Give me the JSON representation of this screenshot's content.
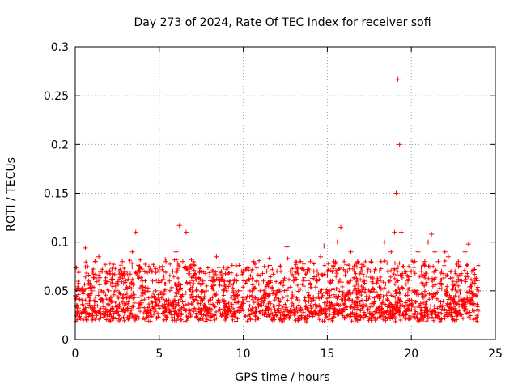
{
  "chart_data": {
    "type": "scatter",
    "title": "Day 273 of 2024, Rate Of TEC Index for receiver sofi",
    "xlabel": "GPS time / hours",
    "ylabel": "ROTI / TECUs",
    "xlim": [
      0,
      25
    ],
    "ylim": [
      0,
      0.3
    ],
    "x_ticks": [
      "0",
      "5",
      "10",
      "15",
      "20",
      "25"
    ],
    "y_ticks": [
      "0",
      "0.05",
      "0.1",
      "0.15",
      "0.2",
      "0.25",
      "0.3"
    ],
    "grid": true,
    "marker": "+",
    "color": "#ff0000",
    "series": [
      {
        "name": "ROTI",
        "x": [
          0.0,
          0.2,
          0.4,
          0.6,
          0.8,
          1.0,
          1.2,
          1.4,
          1.6,
          1.8,
          2.0,
          2.2,
          2.4,
          2.6,
          2.8,
          3.0,
          3.2,
          3.4,
          3.6,
          3.8,
          4.0,
          4.2,
          4.4,
          4.6,
          4.8,
          5.0,
          5.2,
          5.4,
          5.6,
          5.8,
          6.0,
          6.2,
          6.4,
          6.6,
          6.8,
          7.0,
          7.2,
          7.4,
          7.6,
          7.8,
          8.0,
          8.2,
          8.4,
          8.6,
          8.8,
          9.0,
          9.2,
          9.4,
          9.6,
          9.8,
          10.0,
          10.2,
          10.4,
          10.6,
          10.8,
          11.0,
          11.2,
          11.4,
          11.6,
          11.8,
          12.0,
          12.2,
          12.4,
          12.6,
          12.8,
          13.0,
          13.2,
          13.4,
          13.6,
          13.8,
          14.0,
          14.2,
          14.4,
          14.6,
          14.8,
          15.0,
          15.2,
          15.4,
          15.6,
          15.8,
          16.0,
          16.2,
          16.4,
          16.6,
          16.8,
          17.0,
          17.2,
          17.4,
          17.6,
          17.8,
          18.0,
          18.2,
          18.4,
          18.6,
          18.8,
          19.0,
          19.1,
          19.2,
          19.3,
          19.4,
          19.6,
          19.8,
          20.0,
          20.2,
          20.4,
          20.6,
          20.8,
          21.0,
          21.2,
          21.4,
          21.6,
          21.8,
          22.0,
          22.2,
          22.4,
          22.6,
          22.8,
          23.0,
          23.2,
          23.4,
          23.6,
          23.8,
          24.0
        ],
        "y": [
          0.045,
          0.07,
          0.05,
          0.094,
          0.06,
          0.05,
          0.08,
          0.085,
          0.07,
          0.06,
          0.05,
          0.065,
          0.055,
          0.07,
          0.08,
          0.06,
          0.07,
          0.09,
          0.11,
          0.07,
          0.06,
          0.05,
          0.07,
          0.06,
          0.05,
          0.07,
          0.075,
          0.08,
          0.06,
          0.07,
          0.09,
          0.117,
          0.08,
          0.11,
          0.07,
          0.06,
          0.05,
          0.07,
          0.06,
          0.05,
          0.065,
          0.07,
          0.085,
          0.06,
          0.055,
          0.05,
          0.06,
          0.05,
          0.06,
          0.05,
          0.07,
          0.06,
          0.05,
          0.08,
          0.06,
          0.05,
          0.06,
          0.07,
          0.06,
          0.05,
          0.07,
          0.075,
          0.06,
          0.095,
          0.07,
          0.06,
          0.07,
          0.08,
          0.06,
          0.07,
          0.08,
          0.07,
          0.06,
          0.085,
          0.096,
          0.07,
          0.06,
          0.08,
          0.1,
          0.115,
          0.08,
          0.07,
          0.09,
          0.07,
          0.08,
          0.07,
          0.06,
          0.07,
          0.08,
          0.07,
          0.06,
          0.08,
          0.1,
          0.07,
          0.09,
          0.11,
          0.15,
          0.267,
          0.2,
          0.11,
          0.07,
          0.06,
          0.07,
          0.08,
          0.09,
          0.07,
          0.08,
          0.1,
          0.108,
          0.09,
          0.08,
          0.07,
          0.09,
          0.085,
          0.07,
          0.07,
          0.08,
          0.06,
          0.09,
          0.098,
          0.07,
          0.06,
          0.05
        ]
      }
    ]
  }
}
